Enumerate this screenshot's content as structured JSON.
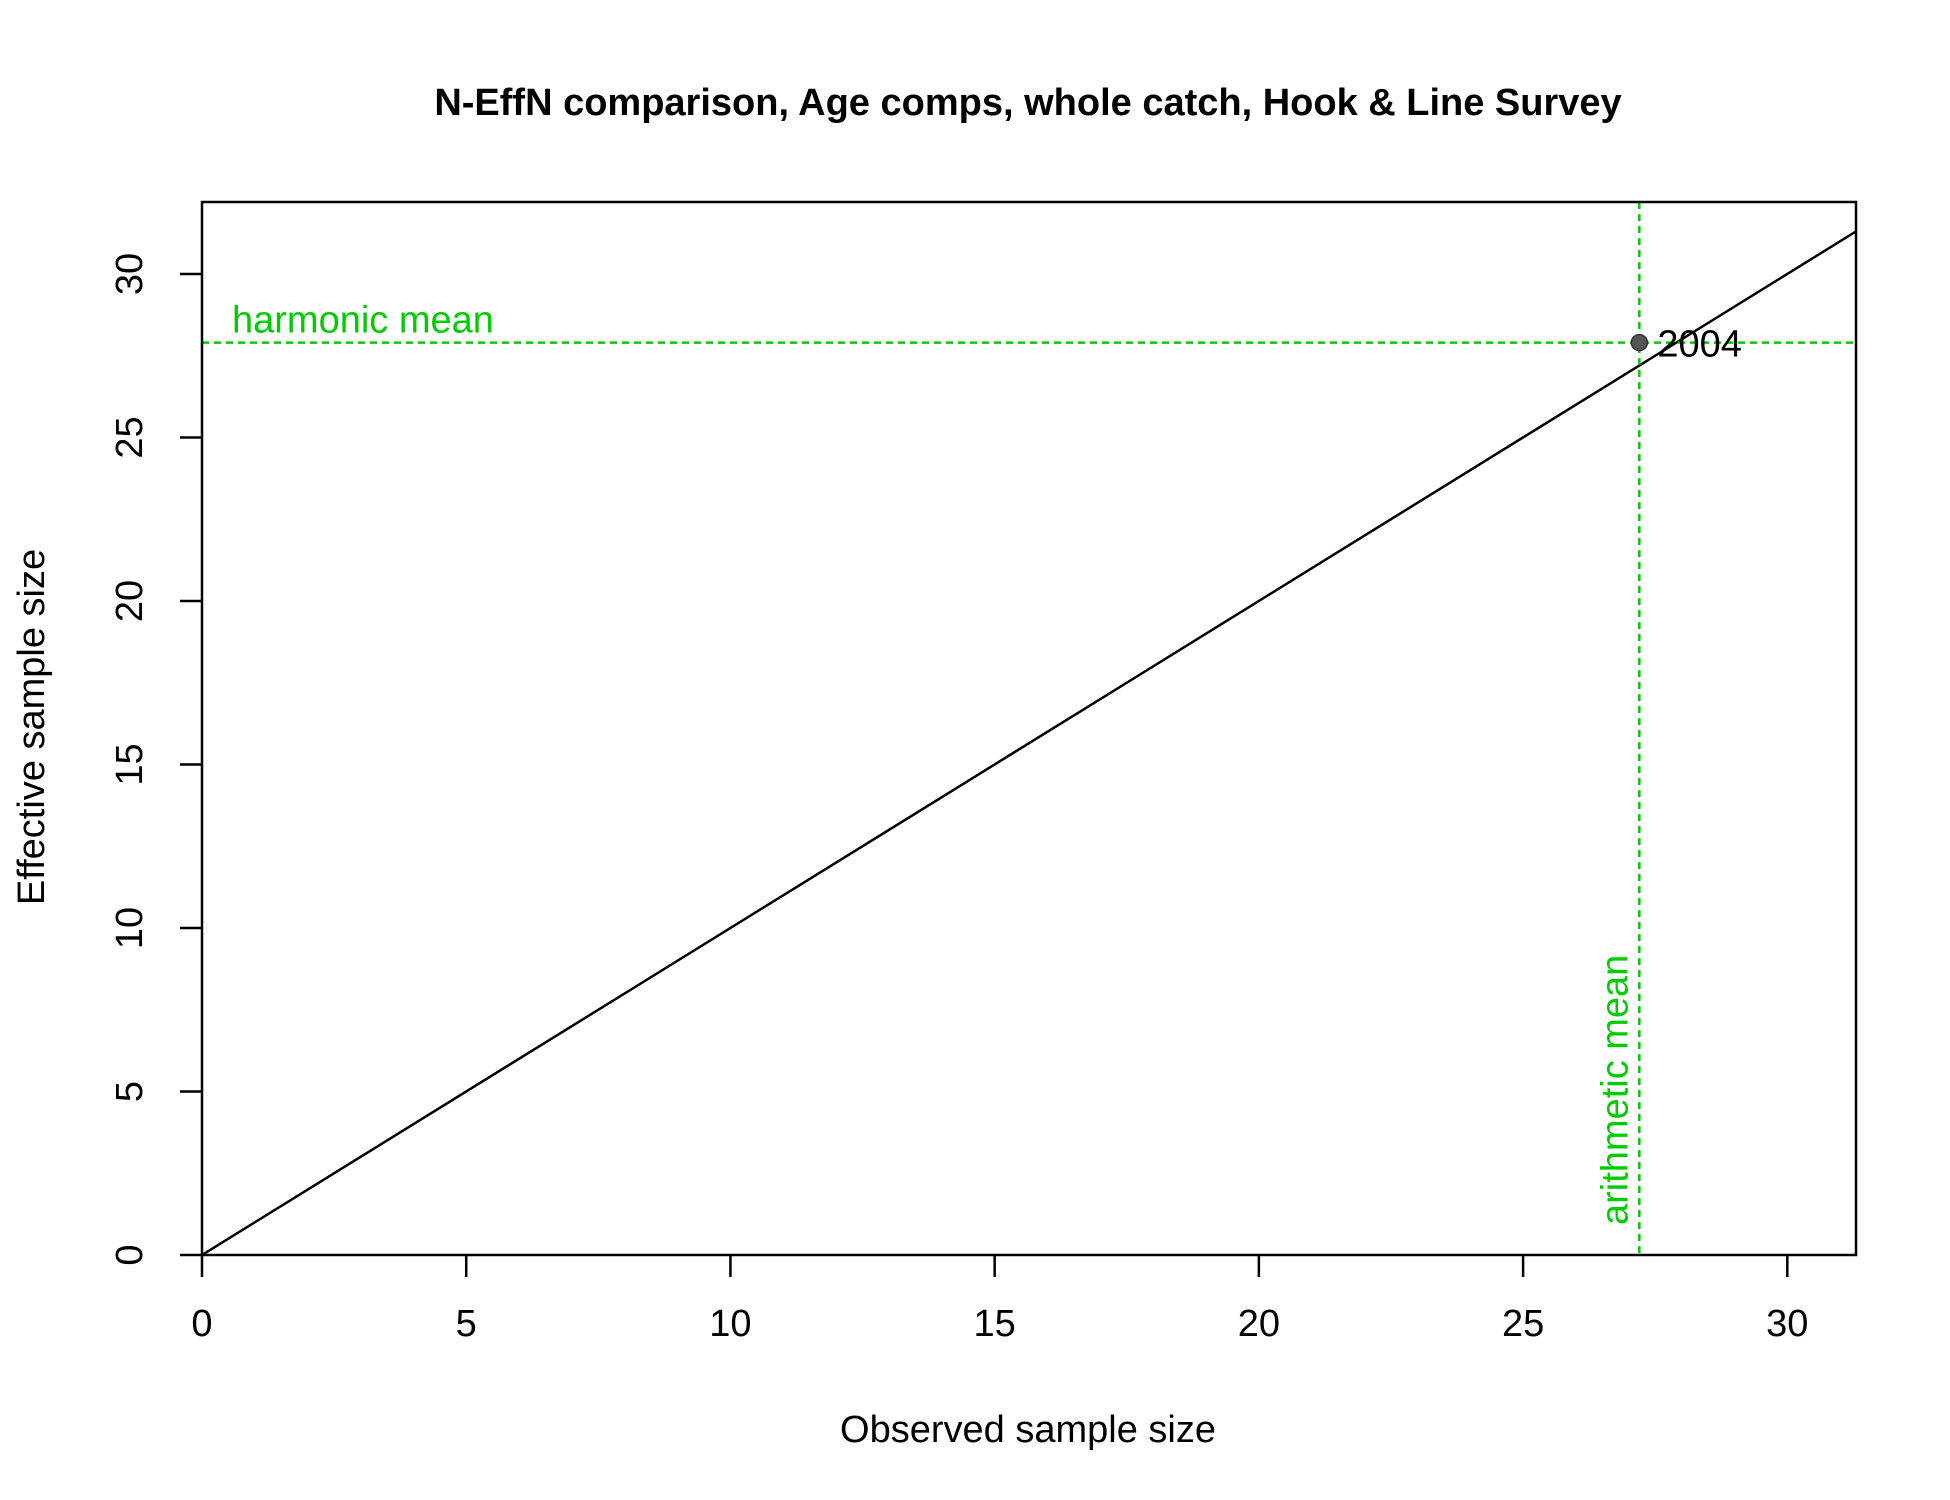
{
  "chart_data": {
    "type": "scatter",
    "title": "N-EffN comparison, Age comps, whole catch, Hook & Line Survey",
    "xlabel": "Observed sample size",
    "ylabel": "Effective sample size",
    "xlim": [
      0,
      31.3
    ],
    "ylim": [
      0,
      32.2
    ],
    "x_ticks": [
      0,
      5,
      10,
      15,
      20,
      25,
      30
    ],
    "y_ticks": [
      0,
      5,
      10,
      15,
      20,
      25,
      30
    ],
    "x_tick_labels": [
      "0",
      "5",
      "10",
      "15",
      "20",
      "25",
      "30"
    ],
    "y_tick_labels": [
      "0",
      "5",
      "10",
      "15",
      "20",
      "25",
      "30"
    ],
    "grid": false,
    "points": [
      {
        "x": 27.2,
        "y": 27.9,
        "label": "2004",
        "color": "#555555"
      }
    ],
    "reference_lines": {
      "one_to_one": {
        "color": "#000000"
      },
      "harmonic_mean": {
        "y": 27.9,
        "label": "harmonic mean",
        "color": "#00cc00"
      },
      "arithmetic_mean": {
        "x": 27.2,
        "label": "arithmetic mean",
        "color": "#00cc00"
      }
    }
  }
}
